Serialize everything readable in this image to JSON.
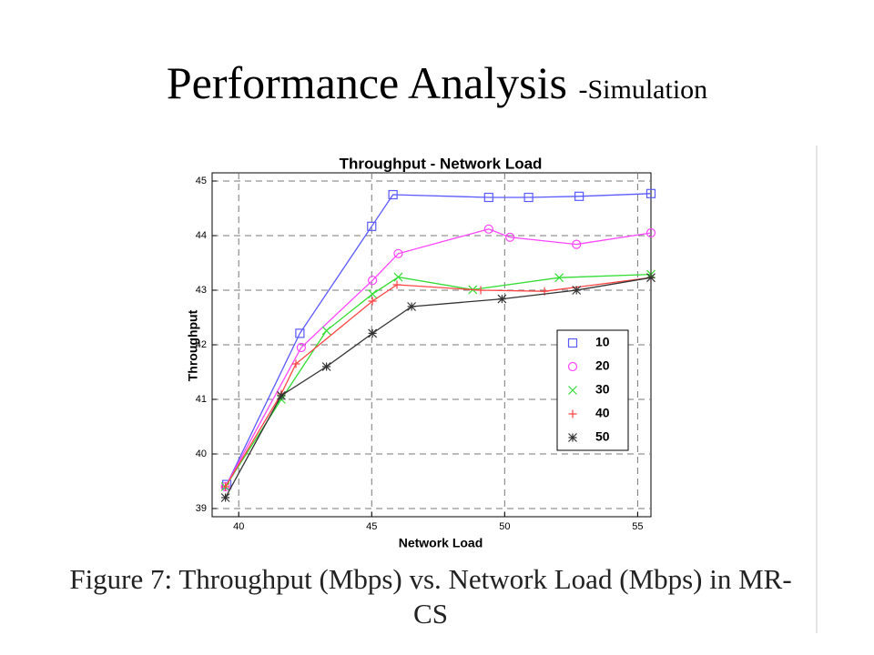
{
  "slide": {
    "title": "Performance Analysis",
    "subtitle": "-Simulation",
    "caption": "Figure 7: Throughput (Mbps) vs. Network Load (Mbps) in MR-CS"
  },
  "chart_data": {
    "type": "line",
    "title": "Throughput - Network Load",
    "x_label": "Network Load",
    "y_label": "Throughput",
    "xlim": [
      39,
      55.5
    ],
    "ylim": [
      38.85,
      45.15
    ],
    "xticks": [
      40,
      45,
      50,
      55
    ],
    "yticks": [
      39,
      40,
      41,
      42,
      43,
      44,
      45
    ],
    "grid": true,
    "legend": "lower-right",
    "series": [
      {
        "name": "10",
        "color": "#5a5aff",
        "marker": "square",
        "x": [
          39.55,
          42.3,
          45,
          45.8,
          49.4,
          50.9,
          52.8,
          55.5
        ],
        "values": [
          39.44,
          42.21,
          44.17,
          44.75,
          44.7,
          44.7,
          44.72,
          44.77
        ]
      },
      {
        "name": "20",
        "color": "#ff44ff",
        "marker": "circle",
        "x": [
          39.5,
          42.35,
          45.03,
          46,
          49.4,
          50.2,
          52.7,
          55.5
        ],
        "values": [
          39.4,
          41.95,
          43.18,
          43.67,
          44.12,
          43.97,
          43.84,
          44.05
        ]
      },
      {
        "name": "30",
        "color": "#33dd33",
        "marker": "x",
        "x": [
          39.5,
          41.6,
          43.3,
          45.03,
          46,
          48.8,
          52.05,
          55.5
        ],
        "values": [
          39.4,
          41.0,
          42.26,
          42.93,
          43.24,
          43.01,
          43.23,
          43.29
        ]
      },
      {
        "name": "40",
        "color": "#ff4444",
        "marker": "plus",
        "x": [
          39.5,
          41.6,
          42.15,
          45.03,
          45.95,
          49.1,
          51.5,
          55.5
        ],
        "values": [
          39.4,
          41.1,
          41.65,
          42.8,
          43.1,
          43.0,
          42.98,
          43.23
        ]
      },
      {
        "name": "50",
        "color": "#333333",
        "marker": "star",
        "x": [
          39.5,
          41.6,
          43.3,
          45.03,
          46.5,
          49.9,
          52.7,
          55.5
        ],
        "values": [
          39.2,
          41.07,
          41.6,
          42.21,
          42.7,
          42.84,
          43.0,
          43.23
        ]
      }
    ]
  }
}
